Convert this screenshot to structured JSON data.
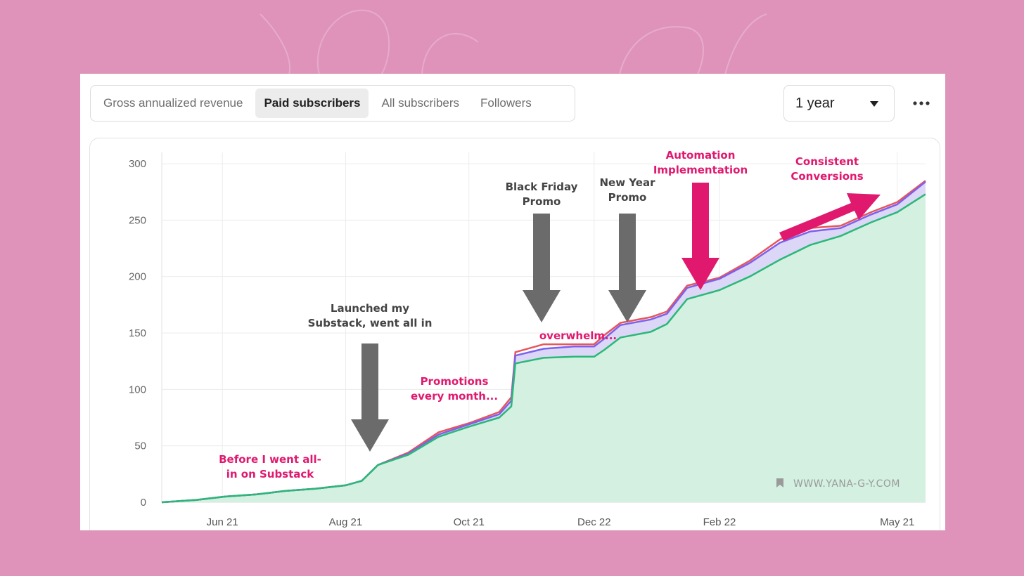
{
  "tabs": [
    {
      "label": "Gross annualized revenue",
      "active": false
    },
    {
      "label": "Paid subscribers",
      "active": true
    },
    {
      "label": "All subscribers",
      "active": false
    },
    {
      "label": "Followers",
      "active": false
    }
  ],
  "range_select": {
    "value": "1 year"
  },
  "more_icon": "more-horizontal-icon",
  "watermark": "WWW.YANA-G-Y.COM",
  "watermark_icon": "bookmark-icon",
  "colors": {
    "paid_line": "#2ab878",
    "paid_fill": "#d3f0e1",
    "total_line": "#7b61ee",
    "total_fill": "#d8d3f5",
    "red_line": "#e8555c",
    "arrow_gray": "#6b6b6b",
    "arrow_pink": "#e0196f",
    "annotation_gray": "#444444",
    "annotation_pink": "#e0196f"
  },
  "chart_data": {
    "type": "area",
    "title": "",
    "xlabel": "",
    "ylabel": "",
    "ylim": [
      0,
      310
    ],
    "yticks": [
      0,
      50,
      100,
      150,
      200,
      250,
      300
    ],
    "xticks": [
      {
        "label": "Jun 21",
        "date": "2021-06-21"
      },
      {
        "label": "Aug 21",
        "date": "2021-08-21"
      },
      {
        "label": "Oct 21",
        "date": "2021-10-21"
      },
      {
        "label": "Dec 22",
        "date": "2021-12-22"
      },
      {
        "label": "Feb 22",
        "date": "2022-02-22"
      },
      {
        "label": "May 21",
        "date": "2022-05-21"
      }
    ],
    "xrange": [
      "2021-05-22",
      "2022-06-04"
    ],
    "grid": true,
    "series": [
      {
        "role": "paid",
        "style": "line-with-fill",
        "x": [
          "2021-05-22",
          "2021-06-08",
          "2021-06-22",
          "2021-07-08",
          "2021-07-22",
          "2021-08-06",
          "2021-08-21",
          "2021-08-29",
          "2021-09-06",
          "2021-09-21",
          "2021-10-06",
          "2021-10-21",
          "2021-11-05",
          "2021-11-11",
          "2021-11-13",
          "2021-11-27",
          "2021-12-12",
          "2021-12-22",
          "2021-12-27",
          "2022-01-04",
          "2022-01-19",
          "2022-01-27",
          "2022-02-06",
          "2022-02-22",
          "2022-03-09",
          "2022-03-24",
          "2022-04-08",
          "2022-04-23",
          "2022-05-08",
          "2022-05-21",
          "2022-06-04"
        ],
        "y": [
          0,
          2,
          5,
          7,
          10,
          12,
          15,
          19,
          33,
          42,
          58,
          67,
          75,
          85,
          123,
          128,
          129,
          129,
          135,
          146,
          151,
          158,
          180,
          188,
          200,
          215,
          228,
          236,
          248,
          257,
          273
        ]
      },
      {
        "role": "total",
        "style": "line-with-band",
        "x": [
          "2021-05-22",
          "2021-06-08",
          "2021-06-22",
          "2021-07-08",
          "2021-07-22",
          "2021-08-06",
          "2021-08-21",
          "2021-08-29",
          "2021-09-06",
          "2021-09-21",
          "2021-10-06",
          "2021-10-21",
          "2021-11-05",
          "2021-11-11",
          "2021-11-13",
          "2021-11-27",
          "2021-12-12",
          "2021-12-22",
          "2021-12-27",
          "2022-01-04",
          "2022-01-19",
          "2022-01-27",
          "2022-02-06",
          "2022-02-22",
          "2022-03-09",
          "2022-03-24",
          "2022-04-08",
          "2022-04-23",
          "2022-05-08",
          "2022-05-21",
          "2022-06-04"
        ],
        "y": [
          0,
          2,
          5,
          7,
          10,
          12,
          15,
          19,
          33,
          43,
          60,
          69,
          78,
          90,
          130,
          136,
          138,
          138,
          145,
          157,
          162,
          167,
          190,
          198,
          212,
          230,
          240,
          243,
          255,
          264,
          284
        ]
      },
      {
        "role": "red",
        "style": "line",
        "x": [
          "2021-05-22",
          "2021-06-08",
          "2021-06-22",
          "2021-07-08",
          "2021-07-22",
          "2021-08-06",
          "2021-08-21",
          "2021-08-29",
          "2021-09-06",
          "2021-09-21",
          "2021-10-06",
          "2021-10-21",
          "2021-11-05",
          "2021-11-11",
          "2021-11-13",
          "2021-11-27",
          "2021-12-12",
          "2021-12-22",
          "2021-12-27",
          "2022-01-04",
          "2022-01-19",
          "2022-01-27",
          "2022-02-06",
          "2022-02-22",
          "2022-03-09",
          "2022-03-24",
          "2022-04-08",
          "2022-04-23",
          "2022-05-08",
          "2022-05-21",
          "2022-06-04"
        ],
        "y": [
          0,
          2,
          5,
          7,
          10,
          12,
          15,
          19,
          33,
          44,
          62,
          70,
          80,
          93,
          133,
          140,
          140,
          140,
          148,
          159,
          164,
          169,
          192,
          199,
          214,
          233,
          243,
          245,
          257,
          266,
          285
        ]
      }
    ],
    "annotations": [
      {
        "lines": [
          "Before I went all-",
          "in on Substack"
        ],
        "color": "pink"
      },
      {
        "lines": [
          "Launched my",
          "Substack, went all in"
        ],
        "color": "gray"
      },
      {
        "lines": [
          "Promotions",
          "every month..."
        ],
        "color": "pink"
      },
      {
        "lines": [
          "Black Friday",
          "Promo"
        ],
        "color": "gray"
      },
      {
        "lines": [
          "overwhelm..."
        ],
        "color": "pink"
      },
      {
        "lines": [
          "New Year",
          "Promo"
        ],
        "color": "gray"
      },
      {
        "lines": [
          "Automation",
          "Implementation"
        ],
        "color": "pink"
      },
      {
        "lines": [
          "Consistent",
          "Conversions"
        ],
        "color": "pink"
      }
    ]
  }
}
